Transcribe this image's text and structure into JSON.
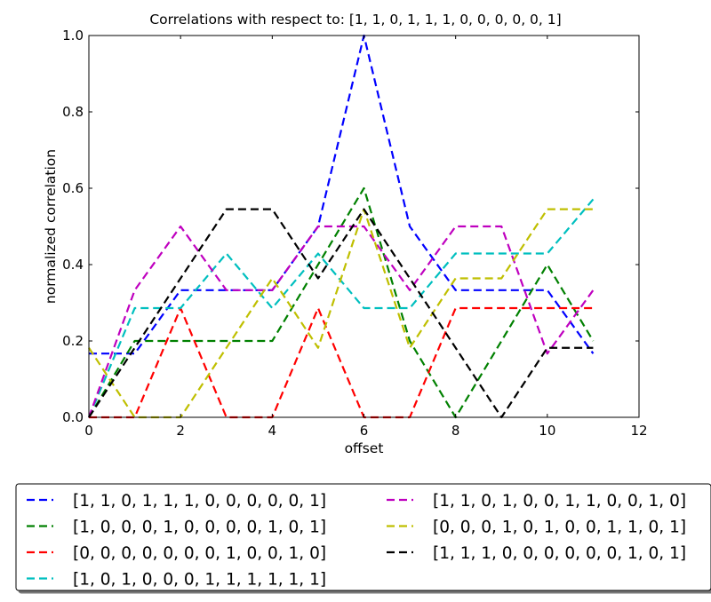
{
  "chart_data": {
    "type": "line",
    "title": "Correlations with respect to: [1, 1, 0, 1, 1, 1, 0, 0, 0, 0, 0, 1]",
    "xlabel": "offset",
    "ylabel": "normalized correlation",
    "xlim": [
      0,
      12
    ],
    "ylim": [
      0,
      1.0
    ],
    "xticks": [
      0,
      2,
      4,
      6,
      8,
      10,
      12
    ],
    "yticks": [
      0.0,
      0.2,
      0.4,
      0.6,
      0.8,
      1.0
    ],
    "xtick_labels": [
      "0",
      "2",
      "4",
      "6",
      "8",
      "10",
      "12"
    ],
    "ytick_labels": [
      "0.0",
      "0.2",
      "0.4",
      "0.6",
      "0.8",
      "1.0"
    ],
    "grid": false,
    "legend_position": "below",
    "line_style": "dashed",
    "x": [
      0,
      1,
      2,
      3,
      4,
      5,
      6,
      7,
      8,
      9,
      10,
      11
    ],
    "series": [
      {
        "name": "[1, 1, 0, 1, 1, 1, 0, 0, 0, 0, 0, 1]",
        "color": "#0000ff",
        "values": [
          0.167,
          0.167,
          0.333,
          0.333,
          0.333,
          0.5,
          1.0,
          0.5,
          0.333,
          0.333,
          0.333,
          0.167
        ]
      },
      {
        "name": "[1, 0, 0, 0, 1, 0, 0, 0, 0, 1, 0, 1]",
        "color": "#008000",
        "values": [
          0.0,
          0.2,
          0.2,
          0.2,
          0.2,
          0.4,
          0.6,
          0.2,
          0.0,
          0.2,
          0.4,
          0.2
        ]
      },
      {
        "name": "[0, 0, 0, 0, 0, 0, 0, 1, 0, 0, 1, 0]",
        "color": "#ff0000",
        "values": [
          0.0,
          0.0,
          0.286,
          0.0,
          0.0,
          0.286,
          0.0,
          0.0,
          0.286,
          0.286,
          0.286,
          0.286
        ]
      },
      {
        "name": "[1, 0, 1, 0, 0, 0, 1, 1, 1, 1, 1, 1]",
        "color": "#00bfbf",
        "values": [
          0.0,
          0.286,
          0.286,
          0.429,
          0.286,
          0.429,
          0.286,
          0.286,
          0.429,
          0.429,
          0.429,
          0.571
        ]
      },
      {
        "name": "[1, 1, 0, 1, 0, 0, 1, 1, 0, 0, 1, 0]",
        "color": "#bf00bf",
        "values": [
          0.0,
          0.333,
          0.5,
          0.333,
          0.333,
          0.5,
          0.5,
          0.333,
          0.5,
          0.5,
          0.167,
          0.333
        ]
      },
      {
        "name": "[0, 0, 0, 1, 0, 1, 0, 0, 1, 1, 0, 1]",
        "color": "#bfbf00",
        "values": [
          0.182,
          0.0,
          0.0,
          0.182,
          0.364,
          0.182,
          0.545,
          0.182,
          0.364,
          0.364,
          0.545,
          0.545
        ]
      },
      {
        "name": "[1, 1, 1, 0, 0, 0, 0, 0, 0, 1, 0, 1]",
        "color": "#000000",
        "values": [
          0.0,
          0.182,
          0.364,
          0.545,
          0.545,
          0.364,
          0.545,
          0.364,
          0.182,
          0.0,
          0.182,
          0.182
        ]
      }
    ]
  }
}
